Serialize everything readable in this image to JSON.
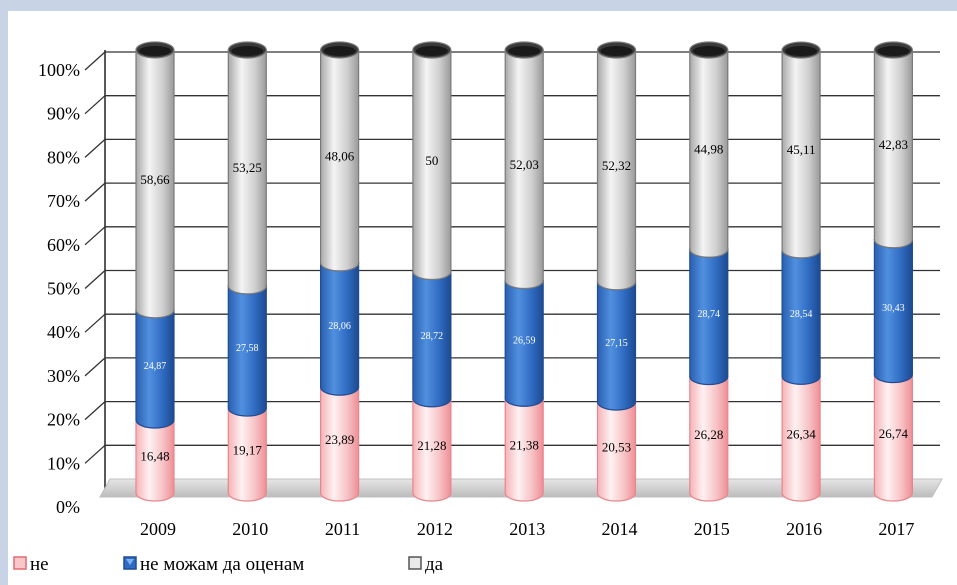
{
  "chart_data": {
    "type": "bar",
    "stacked": true,
    "style": "3d-cylinder",
    "categories": [
      "2009",
      "2010",
      "2011",
      "2012",
      "2013",
      "2014",
      "2015",
      "2016",
      "2017"
    ],
    "y_ticks": [
      "0%",
      "10%",
      "20%",
      "30%",
      "40%",
      "50%",
      "60%",
      "70%",
      "80%",
      "90%",
      "100%"
    ],
    "ylim": [
      0,
      100
    ],
    "grid": true,
    "legend_position": "bottom-left",
    "series": [
      {
        "name": "не",
        "color": "#f3a3a8",
        "values": [
          16.48,
          19.17,
          23.89,
          21.28,
          21.38,
          20.53,
          26.28,
          26.34,
          26.74
        ],
        "labels": [
          "16,48",
          "19,17",
          "23,89",
          "21,28",
          "21,38",
          "20,53",
          "26,28",
          "26,34",
          "26,74"
        ]
      },
      {
        "name": "не можам да оценам",
        "color": "#2e6bc4",
        "values": [
          24.87,
          27.58,
          28.06,
          28.72,
          26.59,
          27.15,
          28.74,
          28.54,
          30.43
        ],
        "labels": [
          "24,87",
          "27,58",
          "28,06",
          "28,72",
          "26,59",
          "27,15",
          "28,74",
          "28,54",
          "30,43"
        ]
      },
      {
        "name": "да",
        "color": "#bdbdbd",
        "values": [
          58.66,
          53.25,
          48.06,
          50,
          52.03,
          52.32,
          44.98,
          45.11,
          42.83
        ],
        "labels": [
          "58,66",
          "53,25",
          "48,06",
          "50",
          "52,03",
          "52,32",
          "44,98",
          "45,11",
          "42,83"
        ]
      }
    ]
  }
}
